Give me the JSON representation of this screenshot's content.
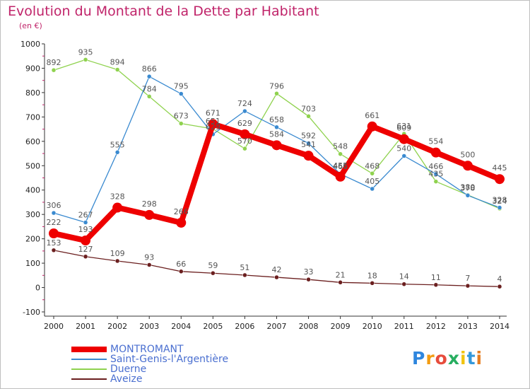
{
  "title": "Evolution du Montant de la Dette par Habitant",
  "unit_label": "(en €)",
  "logo": {
    "text": "Proxiti",
    "colors": [
      "#2e86de",
      "#f39c12",
      "#e74c3c",
      "#27ae60",
      "#f1c40f",
      "#3498db",
      "#e67e22"
    ]
  },
  "chart_data": {
    "type": "line",
    "title": "Evolution du Montant de la Dette par Habitant",
    "ylabel": "(en €)",
    "xlabel": "",
    "ylim": [
      -100,
      1000
    ],
    "yticks": [
      -100,
      0,
      100,
      200,
      300,
      400,
      500,
      600,
      700,
      800,
      900,
      1000
    ],
    "x": [
      "2000",
      "2001",
      "2002",
      "2003",
      "2004",
      "2005",
      "2006",
      "2007",
      "2008",
      "2009",
      "2010",
      "2011",
      "2012",
      "2013",
      "2014"
    ],
    "grid": false,
    "legend_position": "bottom-left",
    "series": [
      {
        "name": "Aveize",
        "color": "#6b1f1f",
        "width": "thin",
        "values": [
          153,
          127,
          109,
          93,
          66,
          59,
          51,
          42,
          33,
          21,
          18,
          14,
          11,
          7,
          4
        ]
      },
      {
        "name": "Duerne",
        "color": "#8fd24e",
        "width": "thin",
        "values": [
          892,
          935,
          894,
          784,
          673,
          651,
          570,
          796,
          703,
          548,
          468,
          631,
          435,
          380,
          324
        ]
      },
      {
        "name": "Saint-Genis-l'Argentière",
        "color": "#3a8ad0",
        "width": "thin",
        "values": [
          306,
          267,
          555,
          866,
          795,
          629,
          724,
          658,
          592,
          466,
          405,
          540,
          466,
          378,
          328
        ]
      },
      {
        "name": "MONTROMANT",
        "color": "#ee0000",
        "width": "thick",
        "values": [
          222,
          193,
          328,
          298,
          266,
          671,
          629,
          584,
          541,
          455,
          661,
          609,
          554,
          500,
          445
        ]
      }
    ],
    "legend_order": [
      "MONTROMANT",
      "Saint-Genis-l'Argentière",
      "Duerne",
      "Aveize"
    ]
  }
}
